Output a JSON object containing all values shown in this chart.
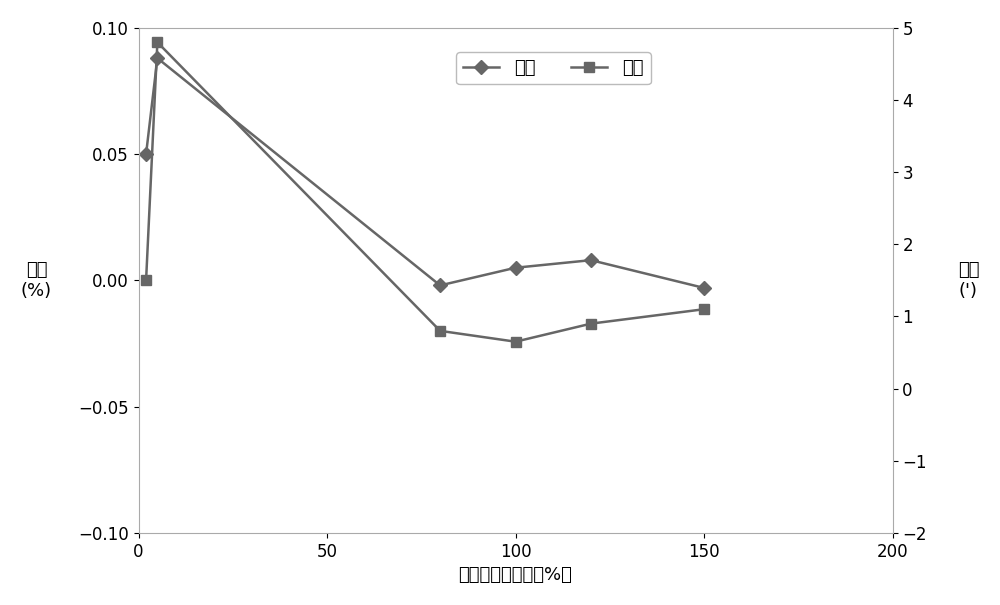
{
  "x_bici": [
    2,
    5,
    80,
    100,
    120,
    150
  ],
  "y_bici": [
    0.05,
    0.088,
    -0.002,
    0.005,
    0.008,
    -0.003
  ],
  "x_jiaoci": [
    2,
    5,
    80,
    100,
    120,
    150
  ],
  "y_jiaoci": [
    1.5,
    4.8,
    0.8,
    0.65,
    0.9,
    1.1
  ],
  "xlabel": "一次电压百分比（%）",
  "ylabel_left": "比差\n(%)",
  "ylabel_right": "角差\n(')",
  "legend_bici": "比差",
  "legend_jiaoci": "角差",
  "xlim": [
    0,
    200
  ],
  "ylim_left": [
    -0.1,
    0.1
  ],
  "ylim_right": [
    -2,
    5
  ],
  "xticks": [
    0,
    50,
    100,
    150,
    200
  ],
  "yticks_left": [
    -0.1,
    -0.05,
    0,
    0.05,
    0.1
  ],
  "yticks_right": [
    -2,
    -1,
    0,
    1,
    2,
    3,
    4,
    5
  ],
  "line_color": "#666666",
  "marker_bici": "D",
  "marker_jiaoci": "s",
  "linewidth": 1.8,
  "markersize": 7,
  "xlabel_fontsize": 13,
  "ylabel_fontsize": 13,
  "legend_fontsize": 13,
  "tick_fontsize": 12,
  "background_color": "#ffffff",
  "border_color": "#aaaaaa",
  "figsize": [
    10.0,
    6.05
  ],
  "dpi": 100
}
